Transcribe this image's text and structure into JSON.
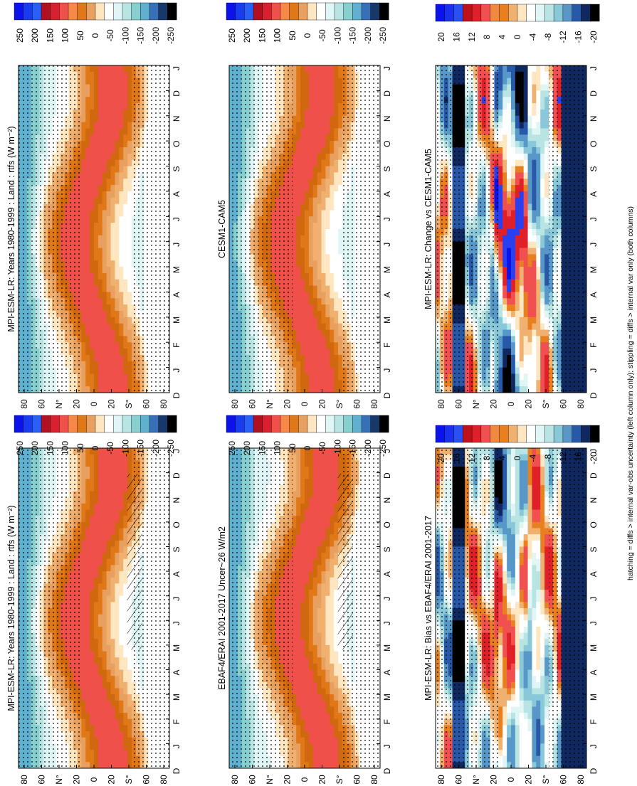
{
  "figure": {
    "footnote": "hatching = diffs > internal var-obs uncertainty (left column only); stippling = diffs > internal var only (both columns)"
  },
  "chart_data": [
    {
      "id": "model-left",
      "type": "heatmap",
      "title": "MPI-ESM-LR: Years 1980-1999 : Land : rtfs (W m⁻²)",
      "months": [
        "D",
        "J",
        "F",
        "M",
        "A",
        "M",
        "J",
        "J",
        "A",
        "S",
        "O",
        "N",
        "D",
        "J"
      ],
      "lat_labels": [
        "80",
        "60",
        "N°",
        "20",
        "0",
        "20",
        "S°",
        "60",
        "80"
      ],
      "colorbar": {
        "labels": [
          "250",
          "200",
          "150",
          "100",
          "50",
          "0",
          "-50",
          "-100",
          "-150",
          "-200",
          "-250"
        ]
      },
      "hatching": true,
      "stippling": true
    },
    {
      "id": "model-right",
      "type": "heatmap",
      "title": "MPI-ESM-LR: Years 1980-1999 : Land : rtfs (W m⁻²)",
      "months": [
        "D",
        "J",
        "F",
        "M",
        "A",
        "M",
        "J",
        "J",
        "A",
        "S",
        "O",
        "N",
        "D",
        "J"
      ],
      "lat_labels": [
        "80",
        "60",
        "N°",
        "20",
        "0",
        "20",
        "S°",
        "60",
        "80"
      ],
      "colorbar": {
        "labels": [
          "250",
          "200",
          "150",
          "100",
          "50",
          "0",
          "-50",
          "-100",
          "-150",
          "-200",
          "-250"
        ]
      },
      "hatching": false,
      "stippling": true
    },
    {
      "id": "obs",
      "type": "heatmap",
      "title": "EBAF4/ERAI 2001-2017 Uncer~26 W/m2",
      "months": [
        "D",
        "J",
        "F",
        "M",
        "A",
        "M",
        "J",
        "J",
        "A",
        "S",
        "O",
        "N",
        "D",
        "J"
      ],
      "lat_labels": [
        "80",
        "60",
        "N°",
        "20",
        "0",
        "20",
        "S°",
        "60",
        "80"
      ],
      "colorbar": {
        "labels": [
          "250",
          "200",
          "150",
          "100",
          "50",
          "0",
          "-50",
          "-100",
          "-150",
          "-200",
          "-250"
        ]
      },
      "hatching": true,
      "stippling": true
    },
    {
      "id": "ref-model",
      "type": "heatmap",
      "title": "CESM1-CAM5",
      "months": [
        "D",
        "J",
        "F",
        "M",
        "A",
        "M",
        "J",
        "J",
        "A",
        "S",
        "O",
        "N",
        "D",
        "J"
      ],
      "lat_labels": [
        "80",
        "60",
        "N°",
        "20",
        "0",
        "20",
        "S°",
        "60",
        "80"
      ],
      "colorbar": {
        "labels": [
          "250",
          "200",
          "150",
          "100",
          "50",
          "0",
          "-50",
          "-100",
          "-150",
          "-200",
          "-250"
        ]
      },
      "hatching": false,
      "stippling": true
    },
    {
      "id": "bias",
      "type": "heatmap",
      "title": "MPI-ESM-LR: Bias vs EBAF4/ERAI 2001-2017",
      "months": [
        "D",
        "J",
        "F",
        "M",
        "A",
        "M",
        "J",
        "J",
        "A",
        "S",
        "O",
        "N",
        "D",
        "J"
      ],
      "lat_labels": [
        "80",
        "60",
        "N°",
        "20",
        "0",
        "20",
        "S°",
        "60",
        "80"
      ],
      "colorbar": {
        "labels": [
          "20",
          "16",
          "12",
          "8",
          "4",
          "0",
          "-4",
          "-8",
          "-12",
          "-16",
          "-20"
        ]
      },
      "hatching": false,
      "stippling": true
    },
    {
      "id": "change",
      "type": "heatmap",
      "title": "MPI-ESM-LR: Change vs CESM1-CAM5",
      "months": [
        "D",
        "J",
        "F",
        "M",
        "A",
        "M",
        "J",
        "J",
        "A",
        "S",
        "O",
        "N",
        "D",
        "J"
      ],
      "lat_labels": [
        "80",
        "60",
        "N°",
        "20",
        "0",
        "20",
        "S°",
        "60",
        "80"
      ],
      "colorbar": {
        "labels": [
          "20",
          "16",
          "12",
          "8",
          "4",
          "0",
          "-4",
          "-8",
          "-12",
          "-16",
          "-20"
        ]
      },
      "hatching": false,
      "stippling": true
    }
  ]
}
